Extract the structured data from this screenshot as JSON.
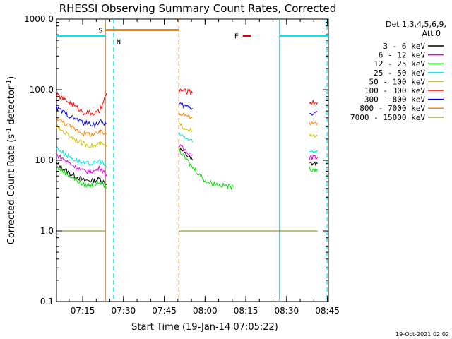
{
  "chart_data": {
    "type": "line",
    "title": "RHESSI Observing Summary Count Rates, Corrected",
    "xlabel": "Start Time (19-Jan-14 07:05:22)",
    "ylabel": "Corrected Count Rate (s",
    "ylabel_sup": "-1",
    "ylabel_mid": " detector",
    "ylabel_end": ")",
    "yscale": "log",
    "ylim": [
      0.1,
      1000
    ],
    "y_ticks": [
      {
        "v": 0.1,
        "label": "0.1"
      },
      {
        "v": 1,
        "label": "1.0"
      },
      {
        "v": 10,
        "label": "10.0"
      },
      {
        "v": 100,
        "label": "100.0"
      },
      {
        "v": 1000,
        "label": "1000.0"
      }
    ],
    "xlim_minutes": [
      0,
      100
    ],
    "x_ticks": [
      {
        "m": 9.63,
        "label": "07:15"
      },
      {
        "m": 24.63,
        "label": "07:30"
      },
      {
        "m": 39.63,
        "label": "07:45"
      },
      {
        "m": 54.63,
        "label": "08:00"
      },
      {
        "m": 69.63,
        "label": "08:15"
      },
      {
        "m": 84.63,
        "label": "08:30"
      },
      {
        "m": 99.63,
        "label": "08:45"
      }
    ],
    "legend_header": [
      "Det 1,3,4,5,6,9,",
      "Att 0"
    ],
    "series": [
      {
        "name": "3 - 6 keV",
        "color": "#000000",
        "x": [
          0,
          5,
          10,
          14,
          16,
          18.5,
          45,
          50,
          58,
          65,
          72,
          80,
          86,
          93,
          96
        ],
        "y": [
          9,
          6.5,
          5.2,
          5.2,
          5.5,
          4.5,
          15,
          10,
          7,
          6,
          6.5,
          7,
          8,
          9,
          9
        ]
      },
      {
        "name": "6 - 12 keV",
        "color": "#e000e0",
        "x": [
          0,
          5,
          10,
          14,
          16,
          18.5,
          45,
          50,
          58,
          65,
          72,
          80,
          86,
          93,
          96
        ],
        "y": [
          12,
          9,
          7,
          7,
          8,
          6,
          16,
          12,
          10,
          9.5,
          9,
          9,
          10,
          11,
          11
        ]
      },
      {
        "name": "12 - 25 keV",
        "color": "#00e000",
        "x": [
          0,
          5,
          10,
          14,
          16,
          18.5,
          45,
          50,
          55,
          60,
          65,
          72,
          80,
          86,
          93,
          96
        ],
        "y": [
          8,
          6,
          4.5,
          4.5,
          5,
          4,
          14,
          8,
          5,
          4.5,
          4.2,
          4.2,
          4.5,
          6,
          7.5,
          7.5
        ]
      },
      {
        "name": "25 - 50 keV",
        "color": "#00e8e8",
        "x": [
          0,
          5,
          10,
          14,
          16,
          18.5,
          45,
          50,
          58,
          65,
          72,
          80,
          86,
          93,
          96
        ],
        "y": [
          15,
          11,
          9,
          9,
          10,
          8,
          24,
          18,
          12,
          10,
          9.5,
          10,
          11,
          13,
          14
        ]
      },
      {
        "name": "50 - 100 keV",
        "color": "#d0c000",
        "x": [
          0,
          5,
          10,
          14,
          16,
          18.5,
          45,
          50,
          58,
          65,
          72,
          80,
          86,
          93,
          96
        ],
        "y": [
          30,
          22,
          17,
          16,
          17,
          16,
          32,
          26,
          20,
          17,
          16,
          17,
          19,
          22,
          22
        ]
      },
      {
        "name": "100 - 300 keV",
        "color": "#ff0000",
        "x": [
          0,
          5,
          10,
          14,
          16,
          18.5,
          45,
          50,
          58,
          65,
          72,
          80,
          86,
          93,
          96
        ],
        "y": [
          85,
          65,
          48,
          46,
          50,
          90,
          100,
          90,
          62,
          50,
          47,
          49,
          56,
          66,
          66
        ]
      },
      {
        "name": "300 - 800 keV",
        "color": "#0000ff",
        "x": [
          0,
          5,
          10,
          14,
          16,
          18.5,
          45,
          50,
          58,
          65,
          72,
          80,
          86,
          93,
          96
        ],
        "y": [
          55,
          42,
          34,
          32,
          35,
          33,
          62,
          55,
          42,
          35,
          32,
          33,
          38,
          46,
          48
        ]
      },
      {
        "name": "800 - 7000 keV",
        "color": "#ff7f00",
        "x": [
          0,
          5,
          10,
          14,
          16,
          18.5,
          45,
          50,
          58,
          65,
          72,
          80,
          86,
          93,
          96
        ],
        "y": [
          40,
          30,
          24,
          23,
          25,
          24,
          48,
          40,
          30,
          25,
          23,
          24,
          27,
          32,
          34
        ]
      },
      {
        "name": "7000 - 15000 keV",
        "color": "#808000",
        "x": [
          0,
          1,
          2,
          3,
          4,
          5,
          6,
          7,
          8,
          9,
          10,
          11,
          12,
          13,
          14,
          15,
          16,
          17,
          18,
          45,
          46,
          47,
          48,
          49,
          50,
          51,
          52,
          53,
          54,
          55,
          56,
          57,
          58,
          59,
          60,
          61,
          62,
          63,
          64,
          65,
          66,
          67,
          68,
          69,
          70,
          71,
          72,
          73,
          74,
          75,
          76,
          77,
          78,
          79,
          80,
          81,
          82,
          83,
          84,
          85,
          86,
          87,
          88,
          89,
          90,
          91,
          92,
          93,
          94,
          95,
          96
        ],
        "y": [
          1,
          1,
          1,
          1,
          1,
          1,
          1,
          1,
          1,
          1,
          1,
          1,
          1,
          1,
          1,
          1,
          1,
          1,
          1,
          1,
          1,
          1,
          1,
          1,
          1,
          1,
          1,
          1,
          1,
          1,
          1,
          1,
          1,
          1,
          1,
          1,
          1,
          1,
          1,
          1,
          1,
          1,
          1,
          1,
          1,
          1,
          1,
          1,
          1,
          1,
          1,
          1,
          1,
          1,
          1,
          1,
          1,
          1,
          1,
          1,
          1,
          1,
          1,
          1,
          1,
          1,
          1,
          1,
          1,
          1,
          1
        ]
      }
    ],
    "orbit_segments": [
      {
        "x0": 0,
        "x1": 18,
        "y": 580,
        "color": "#00e8e8"
      },
      {
        "x0": 82,
        "x1": 100,
        "y": 580,
        "color": "#00e8e8"
      }
    ],
    "flag_segments": [
      {
        "x0": 18,
        "x1": 45,
        "y": 700,
        "color": "#ff7f00",
        "label": "S"
      },
      {
        "x0": 68.5,
        "x1": 71.5,
        "y": 580,
        "color": "#e00000",
        "label": "F"
      }
    ],
    "saa_marker": {
      "x": 21,
      "label": "N",
      "color": "#00e8e8"
    },
    "vlines": [
      {
        "x": 18,
        "color": "#ff7f00",
        "style": "solid"
      },
      {
        "x": 21,
        "color": "#00e8e8",
        "style": "dash"
      },
      {
        "x": 45,
        "color": "#ff7f00",
        "style": "dash"
      },
      {
        "x": 82,
        "color": "#00e8e8",
        "style": "solid"
      },
      {
        "x": 99.5,
        "color": "#00e8e8",
        "style": "dash"
      }
    ],
    "footer_date": "19-Oct-2021 02:02"
  }
}
